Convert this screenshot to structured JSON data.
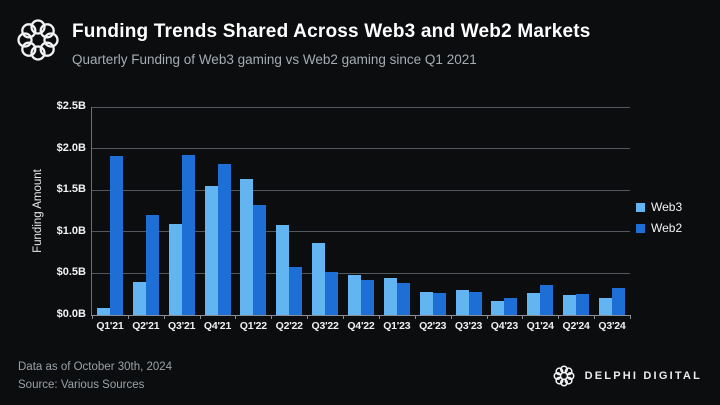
{
  "header": {
    "title": "Funding Trends Shared Across Web3 and Web2 Markets",
    "subtitle": "Quarterly Funding of Web3 gaming vs Web2 gaming since Q1 2021"
  },
  "chart_data": {
    "type": "bar",
    "title": "Funding Trends Shared Across Web3 and Web2 Markets",
    "subtitle": "Quarterly Funding of Web3 gaming vs Web2 gaming since Q1 2021",
    "xlabel": "",
    "ylabel": "Funding Amount",
    "ylim": [
      0,
      2.5
    ],
    "y_ticks": [
      0,
      0.5,
      1.0,
      1.5,
      2.0,
      2.5
    ],
    "y_tick_labels": [
      "$0.0B",
      "$0.5B",
      "$1.0B",
      "$1.5B",
      "$2.0B",
      "$2.5B"
    ],
    "grid": true,
    "legend_position": "right",
    "categories": [
      "Q1'21",
      "Q2'21",
      "Q3'21",
      "Q4'21",
      "Q1'22",
      "Q2'22",
      "Q3'22",
      "Q4'22",
      "Q1'23",
      "Q2'23",
      "Q3'23",
      "Q4'23",
      "Q1'24",
      "Q2'24",
      "Q3'24"
    ],
    "series": [
      {
        "name": "Web3",
        "color": "#62b5f0",
        "values": [
          0.08,
          0.4,
          1.09,
          1.55,
          1.63,
          1.08,
          0.87,
          0.48,
          0.45,
          0.28,
          0.3,
          0.17,
          0.27,
          0.24,
          0.2
        ]
      },
      {
        "name": "Web2",
        "color": "#1d6fd6",
        "values": [
          1.91,
          1.2,
          1.92,
          1.82,
          1.32,
          0.58,
          0.52,
          0.42,
          0.39,
          0.27,
          0.28,
          0.2,
          0.36,
          0.25,
          0.33
        ]
      }
    ]
  },
  "footer": {
    "data_as_of": "Data as of October 30th, 2024",
    "source": "Source: Various Sources",
    "brand": "DELPHI DIGITAL"
  },
  "colors": {
    "background": "#0b0d0e",
    "web3": "#62b5f0",
    "web2": "#1d6fd6",
    "gridline": "#53585e",
    "axis": "#8a9097",
    "muted_text": "#9aa1a8"
  }
}
